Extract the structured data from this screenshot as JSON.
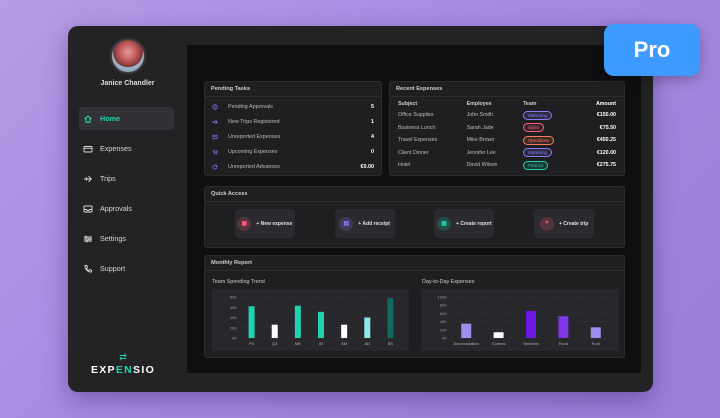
{
  "badge": {
    "label": "Pro"
  },
  "user": {
    "name": "Janice Chandler"
  },
  "nav": [
    {
      "label": "Home",
      "icon": "home-icon",
      "active": true
    },
    {
      "label": "Expenses",
      "icon": "card-icon",
      "active": false
    },
    {
      "label": "Trips",
      "icon": "plane-icon",
      "active": false
    },
    {
      "label": "Approvals",
      "icon": "inbox-icon",
      "active": false
    },
    {
      "label": "Settings",
      "icon": "sliders-icon",
      "active": false
    },
    {
      "label": "Support",
      "icon": "phone-icon",
      "active": false
    }
  ],
  "brand": {
    "prefix": "EXP",
    "accent": "EN",
    "suffix": "SIO",
    "mark": "⇄"
  },
  "pending": {
    "title": "Pending Tasks",
    "items": [
      {
        "label": "Pending Approvals",
        "value": "5",
        "icon": "clock-icon"
      },
      {
        "label": "New Trips Registered",
        "value": "1",
        "icon": "plane-icon"
      },
      {
        "label": "Unreported Expenses",
        "value": "4",
        "icon": "receipt-icon"
      },
      {
        "label": "Upcoming Expenses",
        "value": "0",
        "icon": "cart-icon"
      },
      {
        "label": "Unreported Advances",
        "value": "€0.00",
        "icon": "refresh-icon"
      }
    ]
  },
  "recent": {
    "title": "Recent Expenses",
    "columns": [
      "Subject",
      "Employee",
      "Team",
      "Amount"
    ],
    "rows": [
      {
        "subject": "Office Supplies",
        "employee": "John Smith",
        "team": "Marketing",
        "amount": "€150.00",
        "team_color": "#8a7cff"
      },
      {
        "subject": "Business Lunch",
        "employee": "Sarah Jade",
        "team": "Sales",
        "amount": "€75.50",
        "team_color": "#ff5a7a"
      },
      {
        "subject": "Travel Expenses",
        "employee": "Mike Brown",
        "team": "Operations",
        "amount": "€450.25",
        "team_color": "#ff7a5a"
      },
      {
        "subject": "Client Dinner",
        "employee": "Jennifer Lee",
        "team": "Marketing",
        "amount": "€120.00",
        "team_color": "#8a7cff"
      },
      {
        "subject": "Hotel",
        "employee": "David Wilson",
        "team": "Finance",
        "amount": "€275.75",
        "team_color": "#20d3b0"
      }
    ]
  },
  "quick": {
    "title": "Quick Access",
    "buttons": [
      {
        "label": "+ New expense",
        "icon": "wallet-icon",
        "color": "#ff5a7a"
      },
      {
        "label": "+ Add receipt",
        "icon": "receipt-icon",
        "color": "#8a7cff"
      },
      {
        "label": "+ Create report",
        "icon": "report-icon",
        "color": "#20d3b0"
      },
      {
        "label": "+ Create trip",
        "icon": "pin-icon",
        "color": "#ff5a7a"
      }
    ]
  },
  "report": {
    "title": "Monthly Report"
  },
  "chart_data": [
    {
      "type": "bar",
      "title": "Team Spending Trend",
      "categories": [
        "P3",
        "Q3",
        "MB",
        "IB",
        "SM",
        "AD",
        "BS"
      ],
      "values": [
        62,
        26,
        63,
        51,
        26,
        40,
        78
      ],
      "colors": [
        "#20d3b0",
        "#ffffff",
        "#20d3b0",
        "#20d3b0",
        "#ffffff",
        "#8fe8ef",
        "#0f6b5d"
      ],
      "yticks": [
        "80K",
        "60K",
        "40K",
        "20K",
        "0K"
      ],
      "ylim": [
        0,
        80
      ]
    },
    {
      "type": "bar",
      "title": "Day-to-Day Expenses",
      "categories": [
        "Accomodation",
        "Comms",
        "Services",
        "Food",
        "Fuel"
      ],
      "values": [
        35,
        14,
        66,
        53,
        26
      ],
      "colors": [
        "#a18df0",
        "#ffffff",
        "#6a18e0",
        "#7f36ea",
        "#a18df0"
      ],
      "yticks": [
        "100K",
        "80K",
        "60K",
        "40K",
        "20K",
        "0K"
      ],
      "ylim": [
        0,
        100
      ]
    }
  ]
}
